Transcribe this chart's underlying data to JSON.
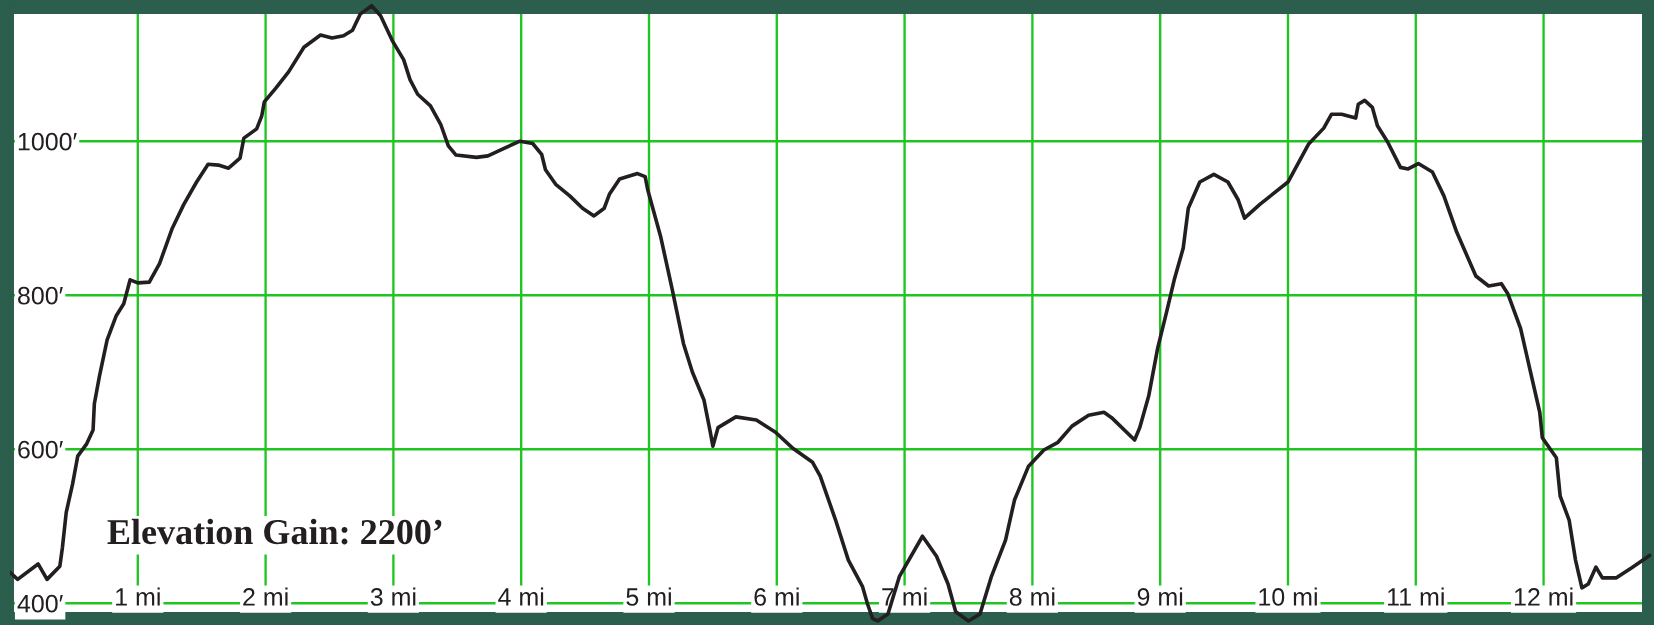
{
  "chart_data": {
    "type": "line",
    "annotations": [
      "Elevation Gain: 2200’"
    ],
    "x": [
      0,
      0.06,
      0.22,
      0.29,
      0.39,
      0.41,
      0.44,
      0.49,
      0.53,
      0.6,
      0.65,
      0.66,
      0.7,
      0.76,
      0.83,
      0.89,
      0.94,
      1.0,
      1.09,
      1.17,
      1.27,
      1.36,
      1.46,
      1.55,
      1.63,
      1.71,
      1.8,
      1.83,
      1.93,
      1.97,
      1.99,
      2.08,
      2.18,
      2.3,
      2.43,
      2.52,
      2.61,
      2.68,
      2.74,
      2.83,
      2.9,
      2.99,
      3.08,
      3.13,
      3.19,
      3.29,
      3.37,
      3.43,
      3.49,
      3.65,
      3.74,
      3.87,
      3.99,
      4.09,
      4.16,
      4.19,
      4.27,
      4.38,
      4.48,
      4.57,
      4.65,
      4.69,
      4.77,
      4.91,
      4.97,
      4.99,
      5.09,
      5.18,
      5.27,
      5.34,
      5.43,
      5.48,
      5.5,
      5.54,
      5.68,
      5.84,
      5.99,
      6.12,
      6.28,
      6.34,
      6.46,
      6.56,
      6.67,
      6.71,
      6.75,
      6.79,
      6.87,
      6.96,
      7.14,
      7.25,
      7.34,
      7.4,
      7.5,
      7.59,
      7.68,
      7.79,
      7.86,
      7.97,
      8.09,
      8.2,
      8.31,
      8.44,
      8.56,
      8.62,
      8.8,
      8.84,
      8.91,
      8.98,
      9.05,
      9.11,
      9.18,
      9.22,
      9.31,
      9.42,
      9.53,
      9.61,
      9.66,
      9.78,
      10.0,
      10.16,
      10.28,
      10.34,
      10.42,
      10.53,
      10.55,
      10.6,
      10.66,
      10.7,
      10.78,
      10.88,
      10.94,
      11.02,
      11.13,
      11.22,
      11.32,
      11.47,
      11.57,
      11.67,
      11.72,
      11.82,
      11.89,
      11.97,
      11.99,
      12.1,
      12.13,
      12.2,
      12.25,
      12.3,
      12.35,
      12.41,
      12.46,
      12.57,
      12.69,
      12.83
    ],
    "series": [
      {
        "color": "#231f20",
        "values": [
          440,
          431,
          451,
          431,
          448,
          472,
          518,
          555,
          591,
          607,
          625,
          659,
          695,
          742,
          773,
          789,
          820,
          816,
          817,
          841,
          887,
          918,
          947,
          970,
          969,
          965,
          978,
          1004,
          1016,
          1033,
          1051,
          1069,
          1090,
          1122,
          1138,
          1134,
          1137,
          1144,
          1165,
          1176,
          1163,
          1131,
          1106,
          1080,
          1061,
          1046,
          1022,
          994,
          982,
          979,
          981,
          991,
          1000,
          997,
          983,
          963,
          944,
          929,
          913,
          903,
          913,
          931,
          951,
          958,
          954,
          937,
          877,
          809,
          737,
          700,
          664,
          622,
          604,
          628,
          642,
          638,
          622,
          602,
          583,
          565,
          508,
          456,
          422,
          399,
          380,
          377,
          386,
          435,
          487,
          461,
          425,
          389,
          377,
          386,
          435,
          482,
          534,
          578,
          599,
          609,
          630,
          644,
          648,
          641,
          612,
          628,
          669,
          731,
          778,
          820,
          861,
          913,
          947,
          957,
          947,
          924,
          900,
          918,
          947,
          996,
          1017,
          1035,
          1035,
          1030,
          1048,
          1053,
          1044,
          1020,
          999,
          966,
          964,
          971,
          960,
          929,
          882,
          825,
          812,
          815,
          802,
          757,
          706,
          648,
          615,
          589,
          539,
          508,
          456,
          420,
          425,
          447,
          433,
          433,
          446,
          462
        ]
      }
    ],
    "line_style": "solid",
    "xlim": [
      0,
      12.85
    ],
    "ylim": [
      372,
      1180
    ],
    "xticks": [
      {
        "value": 1,
        "label": "1 mi"
      },
      {
        "value": 2,
        "label": "2 mi"
      },
      {
        "value": 3,
        "label": "3 mi"
      },
      {
        "value": 4,
        "label": "4 mi"
      },
      {
        "value": 5,
        "label": "5 mi"
      },
      {
        "value": 6,
        "label": "6 mi"
      },
      {
        "value": 7,
        "label": "7 mi"
      },
      {
        "value": 8,
        "label": "8 mi"
      },
      {
        "value": 9,
        "label": "9 mi"
      },
      {
        "value": 10,
        "label": "10 mi"
      },
      {
        "value": 11,
        "label": "11 mi"
      },
      {
        "value": 12,
        "label": "12 mi"
      }
    ],
    "yticks": [
      {
        "value": 400,
        "label": "400′"
      },
      {
        "value": 600,
        "label": "600′"
      },
      {
        "value": 800,
        "label": "800′"
      },
      {
        "value": 1000,
        "label": "1000′"
      }
    ],
    "grid": true
  }
}
